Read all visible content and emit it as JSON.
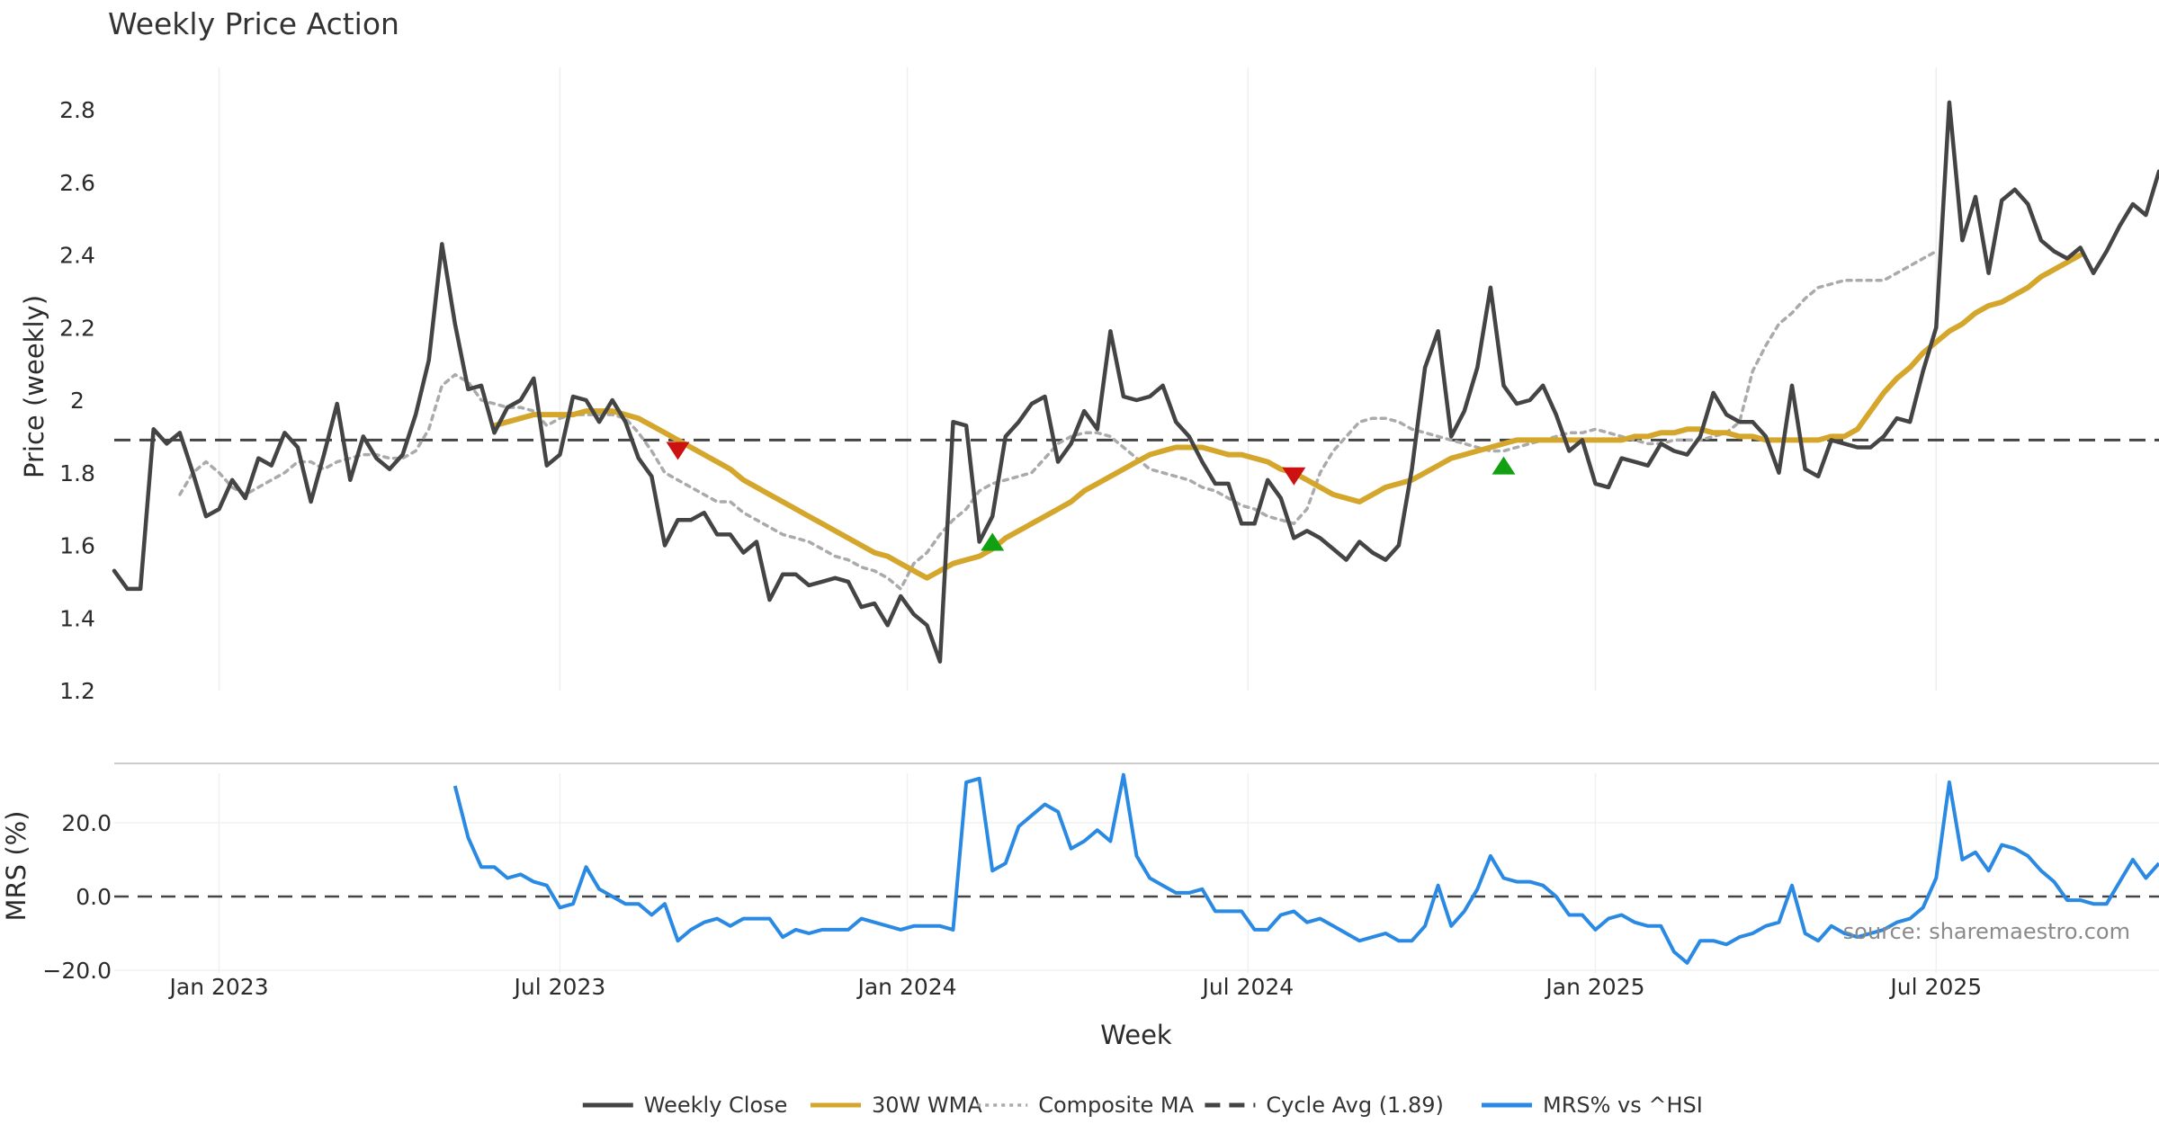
{
  "title": "Weekly Price Action",
  "source": "source: sharemaestro.com",
  "chart_data": [
    {
      "type": "line",
      "panel": "price",
      "ylabel": "Price (weekly)",
      "ylim": [
        1.2,
        2.9
      ],
      "yticks": [
        1.2,
        1.4,
        1.6,
        1.8,
        2.0,
        2.2,
        2.4,
        2.6,
        2.8
      ],
      "ytick_labels": [
        "1.2",
        "1.4",
        "1.6",
        "1.8",
        "2",
        "2.2",
        "2.4",
        "2.6",
        "2.8"
      ],
      "x_start_week": 0,
      "series": [
        {
          "name": "Weekly Close",
          "color": "#444444",
          "values": [
            1.53,
            1.48,
            1.48,
            1.92,
            1.88,
            1.91,
            1.8,
            1.68,
            1.7,
            1.78,
            1.73,
            1.84,
            1.82,
            1.91,
            1.87,
            1.72,
            1.85,
            1.99,
            1.78,
            1.9,
            1.84,
            1.81,
            1.85,
            1.96,
            2.11,
            2.43,
            2.21,
            2.03,
            2.04,
            1.91,
            1.98,
            2.0,
            2.06,
            1.82,
            1.85,
            2.01,
            2.0,
            1.94,
            2.0,
            1.94,
            1.84,
            1.79,
            1.6,
            1.67,
            1.67,
            1.69,
            1.63,
            1.63,
            1.58,
            1.61,
            1.45,
            1.52,
            1.52,
            1.49,
            1.5,
            1.51,
            1.5,
            1.43,
            1.44,
            1.38,
            1.46,
            1.41,
            1.38,
            1.28,
            1.94,
            1.93,
            1.61,
            1.68,
            1.9,
            1.94,
            1.99,
            2.01,
            1.83,
            1.88,
            1.97,
            1.92,
            2.19,
            2.01,
            2.0,
            2.01,
            2.04,
            1.94,
            1.9,
            1.83,
            1.77,
            1.77,
            1.66,
            1.66,
            1.78,
            1.73,
            1.62,
            1.64,
            1.62,
            1.59,
            1.56,
            1.61,
            1.58,
            1.56,
            1.6,
            1.81,
            2.09,
            2.19,
            1.9,
            1.97,
            2.09,
            2.31,
            2.04,
            1.99,
            2.0,
            2.04,
            1.96,
            1.86,
            1.89,
            1.77,
            1.76,
            1.84,
            1.83,
            1.82,
            1.88,
            1.86,
            1.85,
            1.9,
            2.02,
            1.96,
            1.94,
            1.94,
            1.9,
            1.8,
            2.04,
            1.81,
            1.79,
            1.89,
            1.88,
            1.87,
            1.87,
            1.9,
            1.95,
            1.94,
            2.08,
            2.2,
            2.82,
            2.44,
            2.56,
            2.35,
            2.55,
            2.58,
            2.54,
            2.44,
            2.41,
            2.39,
            2.42,
            2.35,
            2.41,
            2.48,
            2.54,
            2.51,
            2.63
          ]
        },
        {
          "name": "30W WMA",
          "color": "#d4a72c",
          "start_week": 29,
          "values": [
            1.93,
            1.94,
            1.95,
            1.96,
            1.96,
            1.96,
            1.96,
            1.97,
            1.97,
            1.97,
            1.96,
            1.95,
            1.93,
            1.91,
            1.89,
            1.87,
            1.85,
            1.83,
            1.81,
            1.78,
            1.76,
            1.74,
            1.72,
            1.7,
            1.68,
            1.66,
            1.64,
            1.62,
            1.6,
            1.58,
            1.57,
            1.55,
            1.53,
            1.51,
            1.53,
            1.55,
            1.56,
            1.57,
            1.59,
            1.62,
            1.64,
            1.66,
            1.68,
            1.7,
            1.72,
            1.75,
            1.77,
            1.79,
            1.81,
            1.83,
            1.85,
            1.86,
            1.87,
            1.87,
            1.87,
            1.86,
            1.85,
            1.85,
            1.84,
            1.83,
            1.81,
            1.8,
            1.78,
            1.76,
            1.74,
            1.73,
            1.72,
            1.74,
            1.76,
            1.77,
            1.78,
            1.8,
            1.82,
            1.84,
            1.85,
            1.86,
            1.87,
            1.88,
            1.89,
            1.89,
            1.89,
            1.89,
            1.89,
            1.89,
            1.89,
            1.89,
            1.89,
            1.9,
            1.9,
            1.91,
            1.91,
            1.92,
            1.92,
            1.91,
            1.91,
            1.9,
            1.9,
            1.89,
            1.89,
            1.89,
            1.89,
            1.89,
            1.9,
            1.9,
            1.92,
            1.97,
            2.02,
            2.06,
            2.09,
            2.13,
            2.16,
            2.19,
            2.21,
            2.24,
            2.26,
            2.27,
            2.29,
            2.31,
            2.34,
            2.36,
            2.38,
            2.4
          ]
        },
        {
          "name": "Composite MA",
          "color": "#aaaaaa",
          "start_week": 5,
          "values": [
            1.74,
            1.8,
            1.83,
            1.8,
            1.76,
            1.74,
            1.76,
            1.78,
            1.8,
            1.83,
            1.83,
            1.81,
            1.83,
            1.84,
            1.85,
            1.85,
            1.84,
            1.84,
            1.86,
            1.92,
            2.04,
            2.07,
            2.05,
            2.0,
            1.99,
            1.98,
            1.98,
            1.97,
            1.93,
            1.95,
            1.96,
            1.96,
            1.96,
            1.96,
            1.95,
            1.91,
            1.86,
            1.8,
            1.78,
            1.76,
            1.74,
            1.72,
            1.72,
            1.69,
            1.67,
            1.65,
            1.63,
            1.62,
            1.61,
            1.59,
            1.57,
            1.56,
            1.54,
            1.53,
            1.51,
            1.48,
            1.55,
            1.58,
            1.63,
            1.67,
            1.7,
            1.75,
            1.77,
            1.78,
            1.79,
            1.8,
            1.84,
            1.88,
            1.9,
            1.91,
            1.91,
            1.9,
            1.87,
            1.84,
            1.81,
            1.8,
            1.79,
            1.78,
            1.76,
            1.75,
            1.73,
            1.71,
            1.7,
            1.68,
            1.67,
            1.66,
            1.7,
            1.8,
            1.86,
            1.9,
            1.94,
            1.95,
            1.95,
            1.94,
            1.92,
            1.91,
            1.9,
            1.89,
            1.88,
            1.87,
            1.86,
            1.86,
            1.87,
            1.88,
            1.89,
            1.9,
            1.91,
            1.91,
            1.92,
            1.91,
            1.9,
            1.89,
            1.88,
            1.88,
            1.89,
            1.89,
            1.89,
            1.9,
            1.91,
            1.94,
            2.08,
            2.15,
            2.21,
            2.24,
            2.28,
            2.31,
            2.32,
            2.33,
            2.33,
            2.33,
            2.33,
            2.35,
            2.37,
            2.39,
            2.41
          ]
        }
      ],
      "cycle_avg": {
        "name": "Cycle Avg (1.89)",
        "value": 1.89,
        "color": "#444444"
      },
      "signals": [
        {
          "week": 43,
          "value": 1.86,
          "kind": "sell",
          "color": "#cc1111"
        },
        {
          "week": 67,
          "value": 1.61,
          "kind": "buy",
          "color": "#11a011"
        },
        {
          "week": 90,
          "value": 1.79,
          "kind": "sell",
          "color": "#cc1111"
        },
        {
          "week": 106,
          "value": 1.82,
          "kind": "buy",
          "color": "#11a011"
        }
      ]
    },
    {
      "type": "line",
      "panel": "mrs",
      "ylabel": "MRS (%)",
      "ylim": [
        -21,
        35
      ],
      "yticks": [
        -20,
        0,
        20
      ],
      "ytick_labels": [
        "−20.0",
        "0.0",
        "20.0"
      ],
      "zero_line": true,
      "series": [
        {
          "name": "MRS% vs ^HSI",
          "color": "#2a8ae3",
          "start_week": 26,
          "values": [
            30,
            16,
            8,
            8,
            5,
            6,
            4,
            3,
            -3,
            -2,
            8,
            2,
            0,
            -2,
            -2,
            -5,
            -2,
            -12,
            -9,
            -7,
            -6,
            -8,
            -6,
            -6,
            -6,
            -11,
            -9,
            -10,
            -9,
            -9,
            -9,
            -6,
            -7,
            -8,
            -9,
            -8,
            -8,
            -8,
            -9,
            31,
            32,
            7,
            9,
            19,
            22,
            25,
            23,
            13,
            15,
            18,
            15,
            33,
            11,
            5,
            3,
            1,
            1,
            2,
            -4,
            -4,
            -4,
            -9,
            -9,
            -5,
            -4,
            -7,
            -6,
            -8,
            -10,
            -12,
            -11,
            -10,
            -12,
            -12,
            -8,
            3,
            -8,
            -4,
            2,
            11,
            5,
            4,
            4,
            3,
            0,
            -5,
            -5,
            -9,
            -6,
            -5,
            -7,
            -8,
            -8,
            -15,
            -18,
            -12,
            -12,
            -13,
            -11,
            -10,
            -8,
            -7,
            3,
            -10,
            -12,
            -8,
            -10,
            -11,
            -10,
            -9,
            -7,
            -6,
            -3,
            5,
            31,
            10,
            12,
            7,
            14,
            13,
            11,
            7,
            4,
            -1,
            -1,
            -2,
            -2,
            4,
            10,
            5,
            9
          ]
        }
      ]
    }
  ],
  "x_axis": {
    "label": "Week",
    "ticks": [
      {
        "week": 8,
        "label": "Jan 2023"
      },
      {
        "week": 34,
        "label": "Jul 2023"
      },
      {
        "week": 60.5,
        "label": "Jan 2024"
      },
      {
        "week": 86.5,
        "label": "Jul 2024"
      },
      {
        "week": 113,
        "label": "Jan 2025"
      },
      {
        "week": 139,
        "label": "Jul 2025"
      }
    ],
    "range": [
      0,
      156
    ]
  },
  "legend": [
    {
      "label": "Weekly Close",
      "style": "solid",
      "color": "#444444"
    },
    {
      "label": "30W WMA",
      "style": "solid",
      "color": "#d4a72c"
    },
    {
      "label": "Composite MA",
      "style": "dotted",
      "color": "#aaaaaa"
    },
    {
      "label": "Cycle Avg (1.89)",
      "style": "dashed",
      "color": "#444444"
    },
    {
      "label": "MRS% vs ^HSI",
      "style": "solid",
      "color": "#2a8ae3"
    }
  ]
}
